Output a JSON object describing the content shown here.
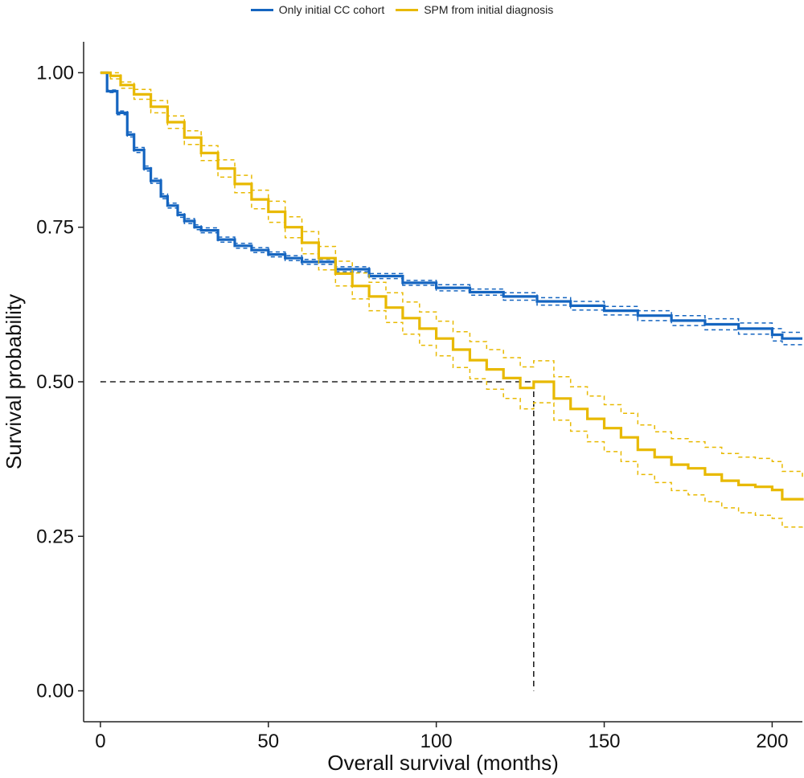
{
  "chart_data": {
    "type": "line",
    "subtype": "kaplan-meier survival curve with confidence bands",
    "xlabel": "Overall survival (months)",
    "ylabel": "Survival probability",
    "xlim": [
      -5,
      209
    ],
    "ylim": [
      -0.05,
      1.05
    ],
    "x_ticks": [
      0,
      50,
      100,
      150,
      200
    ],
    "x_tick_labels": [
      "0",
      "50",
      "100",
      "150",
      "200"
    ],
    "y_ticks": [
      0,
      0.25,
      0.5,
      0.75,
      1.0
    ],
    "y_tick_labels": [
      "0.00",
      "0.25",
      "0.50",
      "0.75",
      "1.00"
    ],
    "grid": false,
    "legend_position": "top",
    "series": [
      {
        "name": "Only initial CC cohort",
        "color": "#1565c0",
        "x": [
          0,
          2,
          5,
          8,
          10,
          13,
          15,
          18,
          20,
          23,
          25,
          28,
          30,
          35,
          40,
          45,
          50,
          55,
          60,
          70,
          80,
          90,
          100,
          110,
          120,
          130,
          140,
          150,
          160,
          170,
          180,
          190,
          200,
          203,
          209
        ],
        "y": [
          1.0,
          0.97,
          0.935,
          0.9,
          0.875,
          0.845,
          0.825,
          0.8,
          0.785,
          0.77,
          0.76,
          0.75,
          0.745,
          0.73,
          0.72,
          0.713,
          0.706,
          0.7,
          0.694,
          0.682,
          0.671,
          0.66,
          0.652,
          0.645,
          0.638,
          0.63,
          0.623,
          0.615,
          0.607,
          0.599,
          0.593,
          0.586,
          0.576,
          0.57,
          0.57
        ],
        "lower": [
          1.0,
          0.968,
          0.932,
          0.896,
          0.871,
          0.841,
          0.821,
          0.796,
          0.781,
          0.766,
          0.756,
          0.746,
          0.741,
          0.726,
          0.716,
          0.709,
          0.702,
          0.696,
          0.69,
          0.678,
          0.667,
          0.656,
          0.647,
          0.64,
          0.632,
          0.624,
          0.616,
          0.608,
          0.599,
          0.591,
          0.584,
          0.577,
          0.566,
          0.56,
          0.56
        ],
        "upper": [
          1.0,
          0.972,
          0.938,
          0.904,
          0.879,
          0.849,
          0.829,
          0.804,
          0.789,
          0.774,
          0.764,
          0.754,
          0.749,
          0.734,
          0.724,
          0.717,
          0.71,
          0.704,
          0.698,
          0.686,
          0.675,
          0.664,
          0.657,
          0.65,
          0.644,
          0.636,
          0.63,
          0.622,
          0.615,
          0.607,
          0.602,
          0.595,
          0.586,
          0.58,
          0.58
        ]
      },
      {
        "name": "SPM from initial diagnosis",
        "color": "#e8b900",
        "x": [
          0,
          3,
          6,
          10,
          15,
          20,
          25,
          30,
          35,
          40,
          45,
          50,
          55,
          60,
          65,
          70,
          75,
          80,
          85,
          90,
          95,
          100,
          105,
          110,
          115,
          120,
          125,
          129,
          135,
          140,
          145,
          150,
          155,
          160,
          165,
          170,
          175,
          180,
          185,
          190,
          195,
          200,
          203,
          209
        ],
        "y": [
          1.0,
          0.995,
          0.98,
          0.965,
          0.945,
          0.92,
          0.895,
          0.87,
          0.845,
          0.82,
          0.795,
          0.775,
          0.75,
          0.725,
          0.7,
          0.675,
          0.655,
          0.638,
          0.62,
          0.603,
          0.586,
          0.57,
          0.552,
          0.535,
          0.52,
          0.506,
          0.49,
          0.5,
          0.473,
          0.456,
          0.44,
          0.425,
          0.41,
          0.39,
          0.378,
          0.366,
          0.36,
          0.35,
          0.34,
          0.333,
          0.33,
          0.325,
          0.31,
          0.308
        ],
        "lower": [
          1.0,
          0.99,
          0.975,
          0.957,
          0.935,
          0.91,
          0.884,
          0.858,
          0.831,
          0.806,
          0.78,
          0.758,
          0.733,
          0.707,
          0.681,
          0.655,
          0.634,
          0.615,
          0.596,
          0.577,
          0.559,
          0.542,
          0.523,
          0.505,
          0.488,
          0.473,
          0.456,
          0.466,
          0.438,
          0.42,
          0.403,
          0.387,
          0.371,
          0.35,
          0.337,
          0.324,
          0.317,
          0.306,
          0.296,
          0.288,
          0.284,
          0.279,
          0.265,
          0.27
        ],
        "upper": [
          1.0,
          1.0,
          0.985,
          0.973,
          0.955,
          0.93,
          0.906,
          0.882,
          0.859,
          0.834,
          0.81,
          0.792,
          0.767,
          0.743,
          0.719,
          0.695,
          0.676,
          0.661,
          0.644,
          0.629,
          0.613,
          0.598,
          0.581,
          0.565,
          0.552,
          0.539,
          0.524,
          0.534,
          0.508,
          0.492,
          0.477,
          0.463,
          0.449,
          0.43,
          0.419,
          0.408,
          0.403,
          0.394,
          0.384,
          0.378,
          0.376,
          0.371,
          0.355,
          0.346
        ]
      }
    ],
    "annotations": [
      {
        "type": "median-reference",
        "x": 129,
        "y": 0.5,
        "style": "dashed",
        "color": "#222222"
      }
    ]
  }
}
